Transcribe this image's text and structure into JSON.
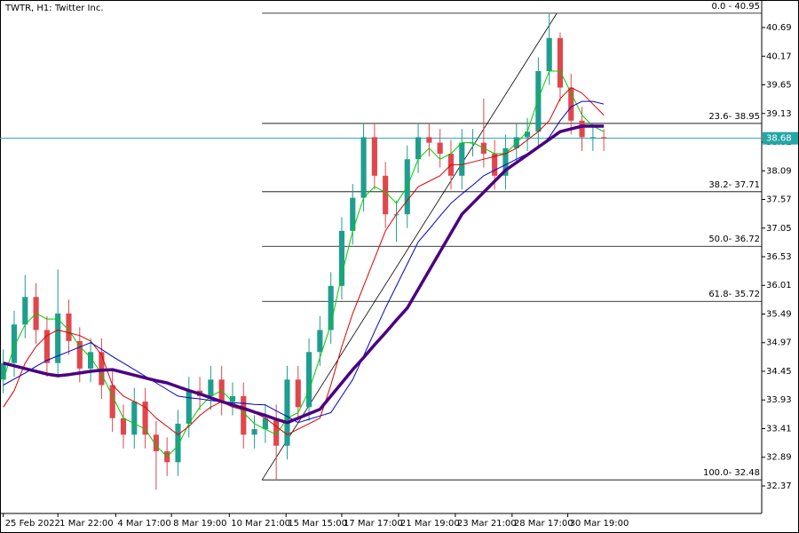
{
  "chart_data": {
    "type": "candlestick",
    "title": "TWTR, H1:  Twitter Inc.",
    "up_color": "#1f9e8f",
    "down_color": "#e0474c",
    "open": [
      34.3,
      34.6,
      35.3,
      35.8,
      35.2,
      34.6,
      35.5,
      35.0,
      34.5,
      34.8,
      34.2,
      33.6,
      33.3,
      33.9,
      33.3,
      33.0,
      32.8,
      33.5,
      34.1,
      34.0,
      34.3,
      33.9,
      34.0,
      33.3,
      33.4,
      33.6,
      33.1,
      34.3,
      33.8,
      34.8,
      35.2,
      36.0,
      37.0,
      37.6,
      38.7,
      38.0,
      37.3,
      37.3,
      38.3,
      38.7,
      38.6,
      38.4,
      38.0,
      38.6,
      38.6,
      38.4,
      38.0,
      38.5,
      38.7,
      38.8,
      39.9,
      40.5,
      39.6,
      39.0,
      38.7,
      38.7
    ],
    "high": [
      34.85,
      35.55,
      36.2,
      36.05,
      35.45,
      36.3,
      35.75,
      35.25,
      35.05,
      35.05,
      34.45,
      33.85,
      34.15,
      34.15,
      33.55,
      33.25,
      33.75,
      34.35,
      34.35,
      34.55,
      34.55,
      34.25,
      34.25,
      33.65,
      33.85,
      33.85,
      34.55,
      34.55,
      35.05,
      35.45,
      36.25,
      37.25,
      37.85,
      38.95,
      38.95,
      38.25,
      37.55,
      38.55,
      38.95,
      38.95,
      38.85,
      38.65,
      38.85,
      38.85,
      39.4,
      38.65,
      38.75,
      38.95,
      39.05,
      40.15,
      40.95,
      40.6,
      39.85,
      39.25,
      38.95,
      38.85
    ],
    "low": [
      34.05,
      34.35,
      35.05,
      34.95,
      34.35,
      34.35,
      34.75,
      34.25,
      34.25,
      33.95,
      33.35,
      33.05,
      33.05,
      33.05,
      32.3,
      32.55,
      32.55,
      33.25,
      33.75,
      33.75,
      33.65,
      33.65,
      33.05,
      33.05,
      33.15,
      32.48,
      32.85,
      33.55,
      33.55,
      34.55,
      34.95,
      35.75,
      36.75,
      37.35,
      37.75,
      37.05,
      36.8,
      37.05,
      38.05,
      38.35,
      38.15,
      37.75,
      37.75,
      38.35,
      38.15,
      37.75,
      37.75,
      38.25,
      38.45,
      38.55,
      39.65,
      39.35,
      38.75,
      38.45,
      38.45,
      38.45
    ],
    "close": [
      34.6,
      35.3,
      35.8,
      35.2,
      34.6,
      35.5,
      35.0,
      34.5,
      34.8,
      34.2,
      33.6,
      33.3,
      33.9,
      33.3,
      33.0,
      32.8,
      33.5,
      34.1,
      34.0,
      34.3,
      33.9,
      34.0,
      33.3,
      33.4,
      33.6,
      33.1,
      34.3,
      33.8,
      34.8,
      35.2,
      36.0,
      37.0,
      37.6,
      38.7,
      38.0,
      37.3,
      37.3,
      38.3,
      38.7,
      38.6,
      38.4,
      38.0,
      38.6,
      38.6,
      38.4,
      38.0,
      38.5,
      38.7,
      38.8,
      39.9,
      40.5,
      39.6,
      39.0,
      38.7,
      38.7,
      38.68
    ],
    "series": [
      {
        "color": "#00cc00",
        "width": 1,
        "values": [
          34.3,
          34.9,
          35.3,
          35.5,
          35.4,
          35.4,
          35.2,
          34.9,
          34.7,
          34.4,
          34.0,
          33.6,
          33.5,
          33.4,
          33.1,
          32.9,
          33.1,
          33.5,
          33.8,
          34.0,
          34.1,
          33.9,
          33.7,
          33.5,
          33.4,
          33.3,
          33.6,
          33.7,
          34.1,
          34.7,
          35.3,
          36.2,
          37.0,
          37.6,
          37.8,
          37.7,
          37.5,
          37.8,
          38.3,
          38.5,
          38.3,
          38.4,
          38.6,
          38.6,
          38.5,
          38.4,
          38.4,
          38.6,
          38.8,
          39.4,
          39.9,
          39.9,
          39.5,
          39.1,
          38.9,
          38.8
        ]
      },
      {
        "color": "#dd0000",
        "width": 1,
        "values": [
          33.8,
          34.1,
          34.6,
          34.9,
          35.1,
          35.2,
          35.15,
          35.1,
          35.0,
          34.75,
          34.2,
          34.0,
          33.9,
          33.8,
          33.6,
          33.45,
          33.3,
          33.45,
          33.65,
          33.8,
          33.9,
          33.8,
          33.75,
          33.7,
          33.6,
          33.45,
          33.3,
          33.4,
          33.5,
          33.6,
          34.2,
          34.9,
          35.5,
          36.0,
          36.5,
          37.0,
          37.3,
          37.55,
          37.8,
          37.9,
          38.0,
          38.2,
          38.2,
          38.25,
          38.3,
          38.35,
          38.4,
          38.5,
          38.65,
          38.8,
          39.0,
          39.4,
          39.6,
          39.5,
          39.3,
          39.1
        ]
      },
      {
        "color": "#0000cc",
        "width": 1,
        "values": [
          34.2,
          34.31,
          34.42,
          34.54,
          34.65,
          34.73,
          34.81,
          34.89,
          34.97,
          34.85,
          34.72,
          34.6,
          34.48,
          34.36,
          34.24,
          34.12,
          34.0,
          33.97,
          33.95,
          33.92,
          33.9,
          33.88,
          33.87,
          33.85,
          33.84,
          33.73,
          33.63,
          33.52,
          33.58,
          33.64,
          33.7,
          34.0,
          34.3,
          34.73,
          35.17,
          35.6,
          36.0,
          36.4,
          36.8,
          37.03,
          37.27,
          37.5,
          37.67,
          37.83,
          38.0,
          38.1,
          38.2,
          38.3,
          38.4,
          38.5,
          38.7,
          39.0,
          39.25,
          39.35,
          39.35,
          39.3
        ]
      },
      {
        "color": "#4b0082",
        "width": 3.5,
        "values": [
          34.6,
          34.55,
          34.5,
          34.45,
          34.4,
          34.37,
          34.39,
          34.42,
          34.45,
          34.47,
          34.48,
          34.43,
          34.38,
          34.33,
          34.28,
          34.24,
          34.17,
          34.1,
          34.04,
          33.97,
          33.9,
          33.84,
          33.78,
          33.71,
          33.65,
          33.58,
          33.52,
          33.6,
          33.68,
          33.76,
          34.0,
          34.24,
          34.48,
          34.7,
          34.93,
          35.15,
          35.38,
          35.6,
          35.94,
          36.28,
          36.62,
          36.96,
          37.3,
          37.5,
          37.7,
          37.9,
          38.1,
          38.24,
          38.38,
          38.52,
          38.66,
          38.8,
          38.85,
          38.9,
          38.9,
          38.9
        ]
      }
    ],
    "last_price": 38.68,
    "last_price_color": "#26a6a6",
    "fibo": {
      "x": [
        23.7,
        50.7
      ],
      "y": [
        32.48,
        40.95
      ],
      "levels": [
        {
          "value": 40.95,
          "label": "0.0 - 40.95"
        },
        {
          "value": 38.95,
          "label": "23.6- 38.95"
        },
        {
          "value": 37.71,
          "label": "38.2- 37.71"
        },
        {
          "value": 36.72,
          "label": "50.0- 36.72"
        },
        {
          "value": 35.72,
          "label": "61.8- 35.72"
        },
        {
          "value": 32.48,
          "label": "100.0- 32.48"
        }
      ]
    },
    "xlim": [
      -0.3,
      69.46
    ],
    "xticks": [
      {
        "value": 0,
        "label": "25 Feb 2022"
      },
      {
        "value": 5.0,
        "label": "1 Mar 22:00"
      },
      {
        "value": 10.3,
        "label": "4 Mar 17:00"
      },
      {
        "value": 15.4,
        "label": "8 Mar 19:00"
      },
      {
        "value": 20.7,
        "label": "10 Mar 21:00"
      },
      {
        "value": 25.9,
        "label": "15 Mar 15:00"
      },
      {
        "value": 31.0,
        "label": "17 Mar 17:00"
      },
      {
        "value": 36.2,
        "label": "21 Mar 19:00"
      },
      {
        "value": 41.4,
        "label": "23 Mar 21:00"
      },
      {
        "value": 46.6,
        "label": "28 Mar 17:00"
      },
      {
        "value": 51.7,
        "label": "30 Mar 19:00"
      }
    ],
    "ylim": [
      31.87,
      41.19
    ],
    "yticks": [
      32.37,
      32.89,
      33.41,
      33.93,
      34.45,
      34.97,
      35.49,
      36.01,
      36.53,
      37.05,
      37.57,
      38.09,
      38.61,
      39.13,
      39.65,
      40.17,
      40.69
    ]
  }
}
